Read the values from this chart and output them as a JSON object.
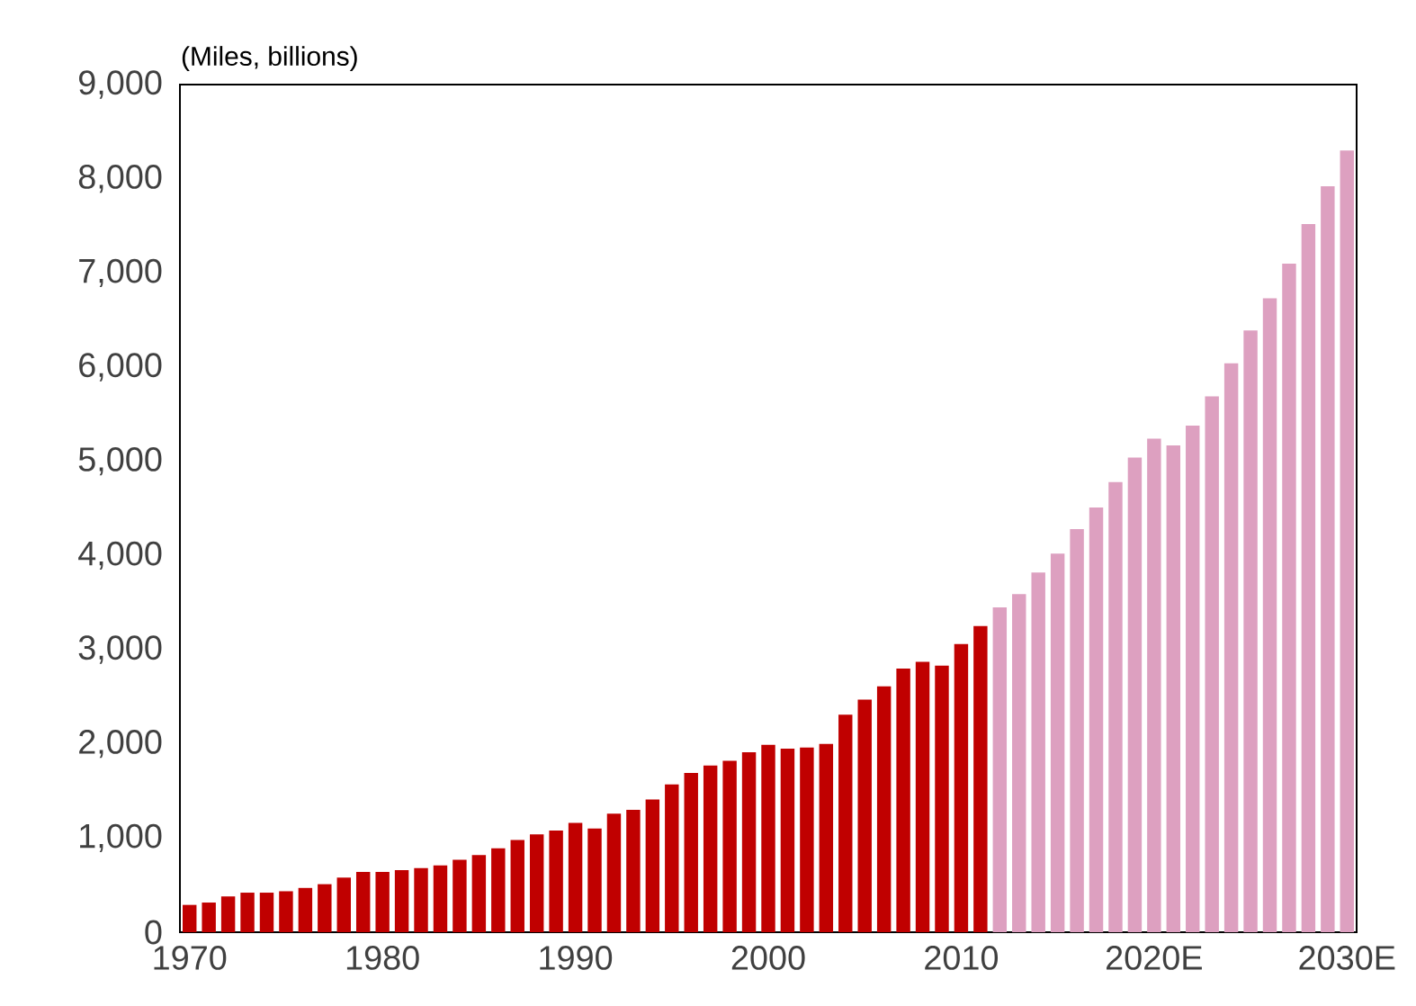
{
  "chart_data": {
    "type": "bar",
    "ylabel": "(Miles, billions)",
    "categories": [
      "1970",
      null,
      null,
      null,
      null,
      null,
      null,
      null,
      null,
      null,
      "1980",
      null,
      null,
      null,
      null,
      null,
      null,
      null,
      null,
      null,
      "1990",
      null,
      null,
      null,
      null,
      null,
      null,
      null,
      null,
      null,
      "2000",
      null,
      null,
      null,
      null,
      null,
      null,
      null,
      null,
      null,
      "2010",
      null,
      null,
      null,
      null,
      null,
      null,
      null,
      null,
      null,
      "2020E",
      null,
      null,
      null,
      null,
      null,
      null,
      null,
      null,
      null,
      "2030E"
    ],
    "values": [
      290,
      315,
      380,
      420,
      420,
      435,
      470,
      510,
      580,
      640,
      640,
      660,
      680,
      710,
      770,
      820,
      890,
      980,
      1040,
      1080,
      1160,
      1100,
      1260,
      1300,
      1410,
      1570,
      1690,
      1770,
      1820,
      1910,
      1990,
      1950,
      1960,
      2000,
      2310,
      2470,
      2610,
      2800,
      2870,
      2830,
      3060,
      3250,
      3450,
      3590,
      3820,
      4020,
      4280,
      4510,
      4780,
      5040,
      5240,
      5170,
      5380,
      5690,
      6040,
      6390,
      6730,
      7100,
      7520,
      7920,
      8300
    ],
    "colors": [
      "#c00000",
      "#c00000",
      "#c00000",
      "#c00000",
      "#c00000",
      "#c00000",
      "#c00000",
      "#c00000",
      "#c00000",
      "#c00000",
      "#c00000",
      "#c00000",
      "#c00000",
      "#c00000",
      "#c00000",
      "#c00000",
      "#c00000",
      "#c00000",
      "#c00000",
      "#c00000",
      "#c00000",
      "#c00000",
      "#c00000",
      "#c00000",
      "#c00000",
      "#c00000",
      "#c00000",
      "#c00000",
      "#c00000",
      "#c00000",
      "#c00000",
      "#c00000",
      "#c00000",
      "#c00000",
      "#c00000",
      "#c00000",
      "#c00000",
      "#c00000",
      "#c00000",
      "#c00000",
      "#c00000",
      "#c00000",
      "#dda0c0",
      "#dda0c0",
      "#dda0c0",
      "#dda0c0",
      "#dda0c0",
      "#dda0c0",
      "#dda0c0",
      "#dda0c0",
      "#dda0c0",
      "#dda0c0",
      "#dda0c0",
      "#dda0c0",
      "#dda0c0",
      "#dda0c0",
      "#dda0c0",
      "#dda0c0",
      "#dda0c0",
      "#dda0c0",
      "#dda0c0"
    ],
    "ylim": [
      0,
      9000
    ],
    "yticks": [
      0,
      {
        "value": 1000,
        "label": "1,000"
      },
      {
        "value": 2000,
        "label": "2,000"
      },
      {
        "value": 3000,
        "label": "3,000"
      },
      {
        "value": 4000,
        "label": "4,000"
      },
      {
        "value": 5000,
        "label": "5,000"
      },
      {
        "value": 6000,
        "label": "6,000"
      },
      {
        "value": 7000,
        "label": "7,000"
      },
      {
        "value": 8000,
        "label": "8,000"
      },
      {
        "value": 9000,
        "label": "9,000"
      }
    ]
  }
}
